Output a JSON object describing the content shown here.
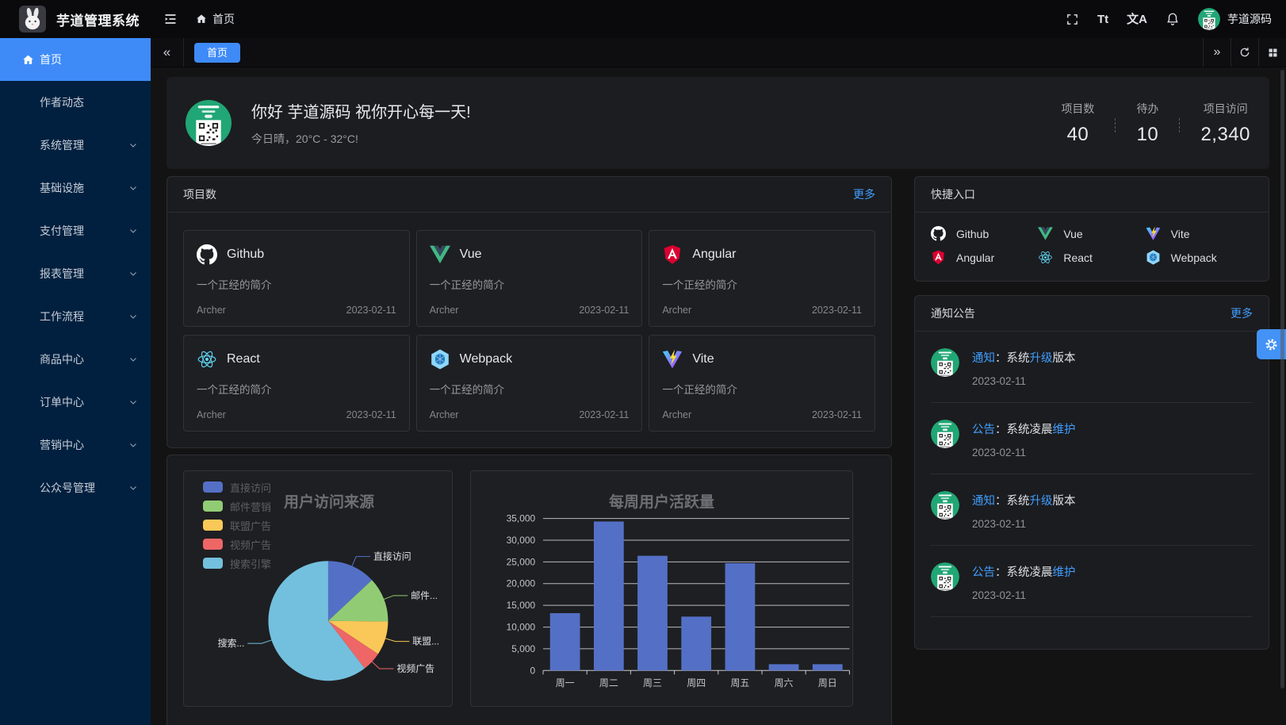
{
  "app": {
    "title": "芋道管理系统",
    "user_name": "芋道源码"
  },
  "header": {
    "breadcrumb_home": "首页",
    "fontsize_glyph": "Tt",
    "language_glyph": "文A",
    "icons": [
      "fullscreen-icon",
      "font-size-icon",
      "language-icon",
      "bell-icon",
      "user-avatar"
    ]
  },
  "tabbar": {
    "active_tab": "首页",
    "collapse_glyph": "«",
    "expand_glyph": "»",
    "icons": [
      "chevron-double-left-icon",
      "chevron-double-right-icon",
      "refresh-icon",
      "grid-icon"
    ]
  },
  "sidebar": {
    "items": [
      {
        "label": "首页",
        "icon": "home",
        "active": true,
        "arrow": false
      },
      {
        "label": "作者动态",
        "arrow": false
      },
      {
        "label": "系统管理",
        "arrow": true
      },
      {
        "label": "基础设施",
        "arrow": true
      },
      {
        "label": "支付管理",
        "arrow": true
      },
      {
        "label": "报表管理",
        "arrow": true
      },
      {
        "label": "工作流程",
        "arrow": true
      },
      {
        "label": "商品中心",
        "arrow": true
      },
      {
        "label": "订单中心",
        "arrow": true
      },
      {
        "label": "营销中心",
        "arrow": true
      },
      {
        "label": "公众号管理",
        "arrow": true
      }
    ]
  },
  "welcome": {
    "greeting": "你好 芋道源码 祝你开心每一天!",
    "weather": "今日晴，20°C - 32°C!",
    "stats": [
      {
        "label": "项目数",
        "value": "40"
      },
      {
        "label": "待办",
        "value": "10"
      },
      {
        "label": "项目访问",
        "value": "2,340"
      }
    ]
  },
  "projects": {
    "title": "项目数",
    "more_label": "更多",
    "items": [
      {
        "name": "Github",
        "icon": "github",
        "desc": "一个正经的简介",
        "author": "Archer",
        "date": "2023-02-11"
      },
      {
        "name": "Vue",
        "icon": "vue",
        "desc": "一个正经的简介",
        "author": "Archer",
        "date": "2023-02-11"
      },
      {
        "name": "Angular",
        "icon": "angular",
        "desc": "一个正经的简介",
        "author": "Archer",
        "date": "2023-02-11"
      },
      {
        "name": "React",
        "icon": "react",
        "desc": "一个正经的简介",
        "author": "Archer",
        "date": "2023-02-11"
      },
      {
        "name": "Webpack",
        "icon": "webpack",
        "desc": "一个正经的简介",
        "author": "Archer",
        "date": "2023-02-11"
      },
      {
        "name": "Vite",
        "icon": "vite",
        "desc": "一个正经的简介",
        "author": "Archer",
        "date": "2023-02-11"
      }
    ]
  },
  "shortcuts": {
    "title": "快捷入口",
    "items": [
      {
        "name": "Github",
        "icon": "github"
      },
      {
        "name": "Vue",
        "icon": "vue"
      },
      {
        "name": "Vite",
        "icon": "vite"
      },
      {
        "name": "Angular",
        "icon": "angular"
      },
      {
        "name": "React",
        "icon": "react"
      },
      {
        "name": "Webpack",
        "icon": "webpack"
      }
    ]
  },
  "notices": {
    "title": "通知公告",
    "more_label": "更多",
    "items": [
      {
        "parts": [
          {
            "t": "通知",
            "blue": true
          },
          {
            "t": "：系统"
          },
          {
            "t": "升级",
            "blue": true
          },
          {
            "t": "版本"
          }
        ],
        "date": "2023-02-11"
      },
      {
        "parts": [
          {
            "t": "公告",
            "blue": true
          },
          {
            "t": "：系统凌晨"
          },
          {
            "t": "维护",
            "blue": true
          }
        ],
        "date": "2023-02-11"
      },
      {
        "parts": [
          {
            "t": "通知",
            "blue": true
          },
          {
            "t": "：系统"
          },
          {
            "t": "升级",
            "blue": true
          },
          {
            "t": "版本"
          }
        ],
        "date": "2023-02-11"
      },
      {
        "parts": [
          {
            "t": "公告",
            "blue": true
          },
          {
            "t": "：系统凌晨"
          },
          {
            "t": "维护",
            "blue": true
          }
        ],
        "date": "2023-02-11"
      }
    ]
  },
  "chart_data": [
    {
      "type": "pie",
      "title": "用户访问来源",
      "legend_position": "top-left",
      "legend": [
        "直接访问",
        "邮件营销",
        "联盟广告",
        "视频广告",
        "搜索引擎"
      ],
      "series": [
        {
          "name": "直接访问",
          "value": 335,
          "color": "#5470c6",
          "callout_label": "直接访问"
        },
        {
          "name": "邮件营销",
          "value": 310,
          "color": "#91cc75",
          "callout_label": "邮件..."
        },
        {
          "name": "联盟广告",
          "value": 234,
          "color": "#fac858",
          "callout_label": "联盟..."
        },
        {
          "name": "视频广告",
          "value": 135,
          "color": "#ee6666",
          "callout_label": "视频广告"
        },
        {
          "name": "搜索引擎",
          "value": 1548,
          "color": "#73c0de",
          "callout_label": "搜索..."
        }
      ]
    },
    {
      "type": "bar",
      "title": "每周用户活跃量",
      "categories": [
        "周一",
        "周二",
        "周三",
        "周四",
        "周五",
        "周六",
        "周日"
      ],
      "values": [
        13200,
        34300,
        26400,
        12400,
        24700,
        1450,
        1450
      ],
      "ylim": [
        0,
        35000
      ],
      "ytick_step": 5000,
      "ylabel": "",
      "xlabel": "",
      "grid": true,
      "bar_color": "#5470c6"
    }
  ],
  "colors": {
    "primary": "#409eff",
    "sidebar_bg": "#01203f",
    "active_item_bg": "#3e8bf8",
    "page_bg": "#131314",
    "panel_bg": "#1b1c1f",
    "qr_avatar_green": "#21a675"
  }
}
